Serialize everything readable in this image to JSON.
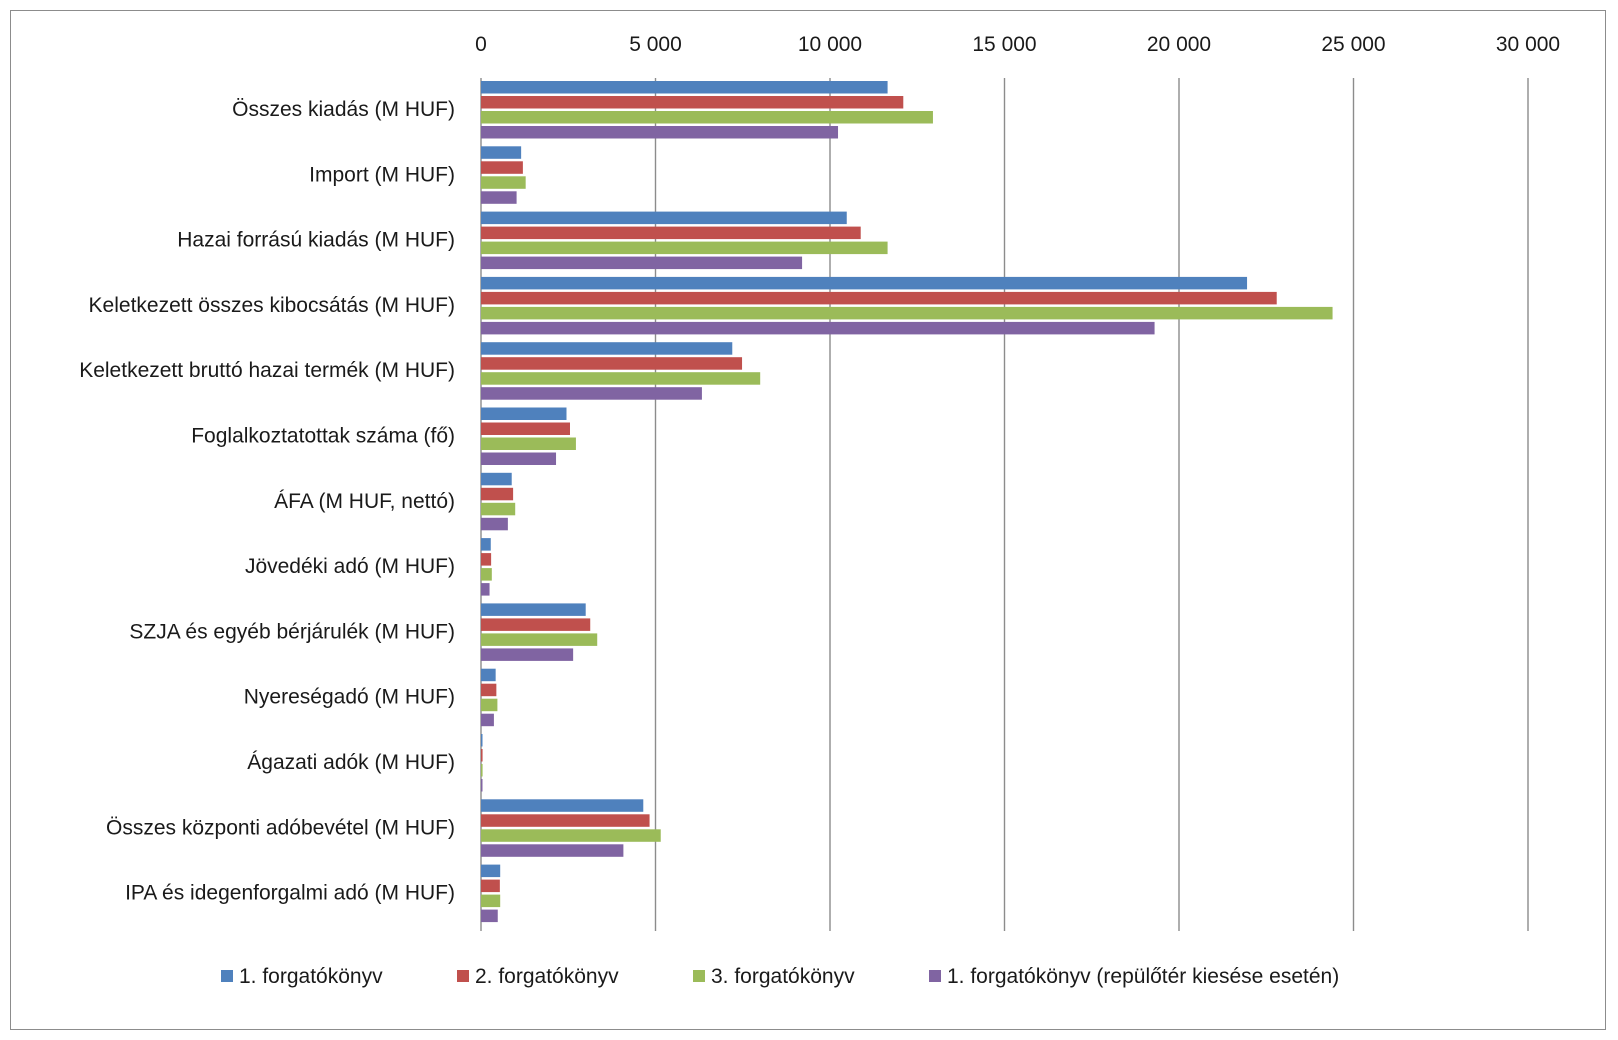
{
  "chart_data": {
    "type": "bar",
    "orientation": "horizontal",
    "title": "",
    "xlabel": "",
    "ylabel": "",
    "xlim": [
      0,
      30000
    ],
    "ticks": [
      0,
      5000,
      10000,
      15000,
      20000,
      25000,
      30000
    ],
    "tick_labels": [
      "0",
      "5 000",
      "10 000",
      "15 000",
      "20 000",
      "25 000",
      "30 000"
    ],
    "tick_position": "top",
    "grid": "vertical",
    "legend_position": "bottom",
    "categories": [
      "Összes kiadás (M HUF)",
      "Import (M HUF)",
      "Hazai forrású kiadás (M HUF)",
      "Keletkezett összes kibocsátás (M HUF)",
      "Keletkezett bruttó hazai termék (M HUF)",
      "Foglalkoztatottak száma (fő)",
      "ÁFA (M HUF, nettó)",
      "Jövedéki adó (M HUF)",
      "SZJA és egyéb bérjárulék (M HUF)",
      "Nyereségadó (M HUF)",
      "Ágazati adók (M HUF)",
      "Összes központi adóbevétel (M HUF)",
      "IPA és idegenforgalmi adó (M HUF)"
    ],
    "series": [
      {
        "name": "1. forgatókönyv",
        "color": "#4F81BD",
        "values": [
          11650,
          1150,
          10480,
          21950,
          7200,
          2450,
          880,
          280,
          3000,
          420,
          40,
          4650,
          550
        ]
      },
      {
        "name": "2. forgatókönyv",
        "color": "#C0504D",
        "values": [
          12100,
          1200,
          10880,
          22800,
          7480,
          2550,
          920,
          290,
          3130,
          440,
          45,
          4830,
          540
        ]
      },
      {
        "name": "3. forgatókönyv",
        "color": "#9BBB59",
        "values": [
          12950,
          1280,
          11650,
          24400,
          8000,
          2720,
          980,
          310,
          3330,
          470,
          45,
          5150,
          550
        ]
      },
      {
        "name": "1. forgatókönyv (repülőtér kiesése esetén)",
        "color": "#8064A2",
        "values": [
          10230,
          1020,
          9200,
          19300,
          6330,
          2150,
          770,
          245,
          2640,
          370,
          35,
          4080,
          480
        ]
      }
    ]
  },
  "colors": {
    "grid": "#8c8c8c",
    "text": "#1a1a1a"
  }
}
